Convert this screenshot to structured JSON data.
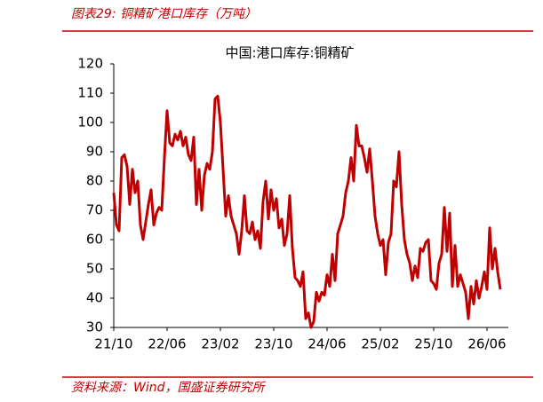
{
  "header": "图表29:  铜精矿港口库存（万吨）",
  "source": "资料来源：Wind，国盛证券研究所",
  "chart_data": {
    "type": "line",
    "title": "中国:港口库存:铜精矿",
    "color": "#c00000",
    "categories": [
      "21/10",
      null,
      null,
      null,
      null,
      null,
      null,
      null,
      null,
      null,
      null,
      null,
      null,
      null,
      null,
      null,
      null,
      null,
      null,
      null,
      "22/06",
      null,
      null,
      null,
      null,
      null,
      null,
      null,
      null,
      null,
      null,
      null,
      null,
      null,
      null,
      null,
      null,
      null,
      null,
      null,
      "23/02",
      null,
      null,
      null,
      null,
      null,
      null,
      null,
      null,
      null,
      null,
      null,
      null,
      null,
      null,
      null,
      null,
      null,
      null,
      null,
      "23/10",
      null,
      null,
      null,
      null,
      null,
      null,
      null,
      null,
      null,
      null,
      null,
      null,
      null,
      null,
      null,
      null,
      null,
      null,
      null,
      "24/06",
      null,
      null,
      null,
      null,
      null,
      null,
      null,
      null,
      null,
      null,
      null,
      null,
      null,
      null,
      null,
      null,
      null,
      null,
      null,
      "25/02",
      null,
      null,
      null,
      null,
      null,
      null,
      null,
      null,
      null,
      null,
      null,
      null,
      null,
      null,
      null,
      null,
      null,
      null,
      null,
      "25/10",
      null,
      null,
      null,
      null,
      null,
      null,
      null,
      null,
      null,
      null,
      null,
      null,
      null,
      null,
      null,
      null,
      null,
      null,
      null,
      "26/06",
      null,
      null,
      null,
      null,
      null
    ],
    "values": [
      76,
      65,
      63,
      88,
      89,
      85,
      72,
      84,
      76,
      80,
      65,
      60,
      66,
      72,
      77,
      65,
      69,
      71,
      70,
      88,
      104,
      93,
      92,
      96,
      94,
      97,
      92,
      95,
      89,
      87,
      95,
      72,
      84,
      70,
      82,
      86,
      84,
      90,
      108,
      109,
      100,
      84,
      68,
      75,
      68,
      65,
      62,
      55,
      63,
      75,
      63,
      62,
      66,
      60,
      63,
      57,
      73,
      80,
      67,
      77,
      70,
      74,
      64,
      67,
      58,
      62,
      75,
      57,
      47,
      46,
      44,
      49,
      33,
      35,
      30,
      32,
      42,
      39,
      42,
      41,
      48,
      44,
      55,
      46,
      62,
      65,
      68,
      76,
      80,
      88,
      80,
      99,
      92,
      92,
      88,
      83,
      91,
      80,
      68,
      62,
      58,
      60,
      48,
      59,
      62,
      80,
      78,
      90,
      72,
      60,
      55,
      52,
      46,
      51,
      47,
      57,
      56,
      59,
      60,
      46,
      45,
      43,
      52,
      55,
      71,
      56,
      69,
      44,
      58,
      44,
      48,
      45,
      42,
      33,
      44,
      38,
      46,
      40,
      44,
      49,
      43,
      64,
      50,
      57,
      49,
      43
    ],
    "ylim": [
      30,
      120
    ],
    "yticks": [
      30,
      40,
      50,
      60,
      70,
      80,
      90,
      100,
      110,
      120
    ]
  }
}
